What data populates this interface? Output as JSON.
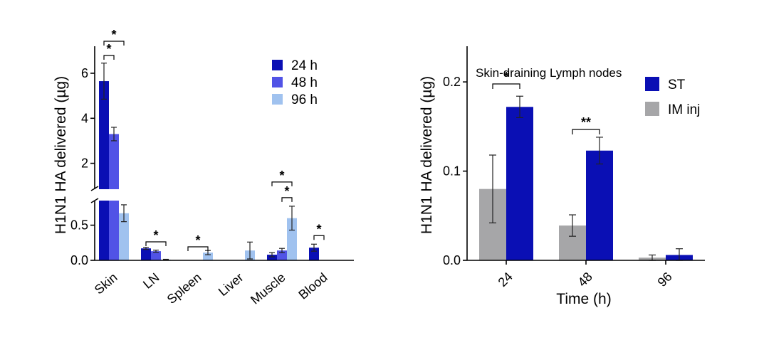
{
  "chart_data": [
    {
      "type": "bar",
      "title": "",
      "ylabel": "H1N1 HA delivered (µg)",
      "xlabel": "",
      "categories": [
        "Skin",
        "LN",
        "Spleen",
        "Liver",
        "Muscle",
        "Blood"
      ],
      "y_axis_break": true,
      "ylim_lower": [
        0,
        0.85
      ],
      "ylim_upper": [
        0.85,
        7.2
      ],
      "yticks_lower": [
        0.0,
        0.5
      ],
      "yticks_lower_labels": [
        "0.0",
        "0.5"
      ],
      "yticks_upper": [
        2,
        4,
        6
      ],
      "yticks_upper_labels": [
        "2",
        "4",
        "6"
      ],
      "legend_position": "top-right",
      "series": [
        {
          "name": "24 h",
          "color": "#0a0fb4",
          "values": [
            5.65,
            0.17,
            null,
            null,
            0.08,
            0.18
          ],
          "errors": [
            0.8,
            0.015,
            null,
            null,
            0.03,
            0.05
          ]
        },
        {
          "name": "48 h",
          "color": "#5153e6",
          "values": [
            3.3,
            0.13,
            null,
            null,
            0.14,
            null
          ],
          "errors": [
            0.3,
            0.015,
            null,
            null,
            0.03,
            null
          ]
        },
        {
          "name": "96 h",
          "color": "#a0c2ef",
          "values": [
            0.67,
            0.01,
            0.11,
            0.14,
            0.6,
            null
          ],
          "errors": [
            0.12,
            0.005,
            0.03,
            0.12,
            0.17,
            null
          ]
        }
      ],
      "significance": [
        {
          "category": "Skin",
          "from_series": 0,
          "to_series": 1,
          "label": "*"
        },
        {
          "category": "Skin",
          "from_series": 0,
          "to_series": 2,
          "label": "*"
        },
        {
          "category": "LN",
          "from_series": 0,
          "to_series": 2,
          "label": "*"
        },
        {
          "category": "Spleen",
          "from_series": 0,
          "to_series": 2,
          "label": "*"
        },
        {
          "category": "Muscle",
          "from_series": 1,
          "to_series": 2,
          "label": "*"
        },
        {
          "category": "Muscle",
          "from_series": 0,
          "to_series": 2,
          "label": "*"
        },
        {
          "category": "Blood",
          "from_series": 0,
          "to_series": 1,
          "label": "*"
        }
      ]
    },
    {
      "type": "bar",
      "title": "Skin-draining Lymph nodes",
      "ylabel": "H1N1 HA delivered (µg)",
      "xlabel": "Time (h)",
      "categories": [
        "24",
        "48",
        "96"
      ],
      "ylim": [
        0,
        0.24
      ],
      "yticks": [
        0.0,
        0.1,
        0.2
      ],
      "ytick_labels": [
        "0.0",
        "0.1",
        "0.2"
      ],
      "legend_position": "top-right",
      "series": [
        {
          "name": "IM inj",
          "color": "#a6a6a8",
          "values": [
            0.08,
            0.039,
            0.003
          ],
          "errors": [
            0.038,
            0.012,
            0.003
          ]
        },
        {
          "name": "ST",
          "color": "#0a0fb4",
          "values": [
            0.172,
            0.123,
            0.006
          ],
          "errors": [
            0.012,
            0.015,
            0.007
          ]
        }
      ],
      "legend_order": [
        "ST",
        "IM inj"
      ],
      "significance": [
        {
          "category": "24",
          "label": "*"
        },
        {
          "category": "48",
          "label": "**"
        }
      ]
    }
  ]
}
